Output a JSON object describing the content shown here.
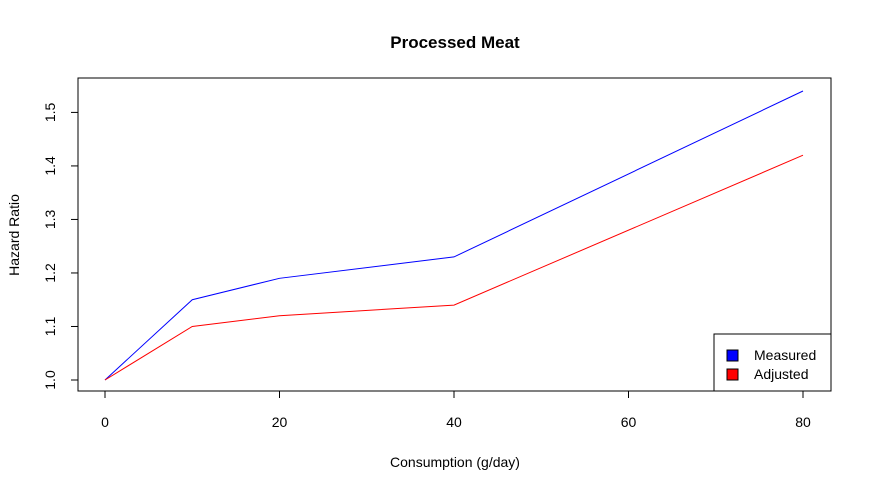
{
  "chart_data": {
    "type": "line",
    "title": "Processed Meat",
    "xlabel": "Consumption (g/day)",
    "ylabel": "Hazard Ratio",
    "x": [
      0,
      10,
      20,
      40,
      80
    ],
    "xlim": [
      0,
      80
    ],
    "ylim": [
      1.0,
      1.54
    ],
    "xticks": [
      0,
      20,
      40,
      60,
      80
    ],
    "yticks": [
      1.0,
      1.1,
      1.2,
      1.3,
      1.4,
      1.5
    ],
    "xtick_labels": [
      "0",
      "20",
      "40",
      "60",
      "80"
    ],
    "ytick_labels": [
      "1.0",
      "1.1",
      "1.2",
      "1.3",
      "1.4",
      "1.5"
    ],
    "grid": false,
    "legend_position": "bottom-right",
    "series": [
      {
        "name": "Measured",
        "color": "#0000ff",
        "values": [
          1.0,
          1.15,
          1.19,
          1.23,
          1.54
        ]
      },
      {
        "name": "Adjusted",
        "color": "#ff0000",
        "values": [
          1.0,
          1.1,
          1.12,
          1.14,
          1.42
        ]
      }
    ]
  }
}
